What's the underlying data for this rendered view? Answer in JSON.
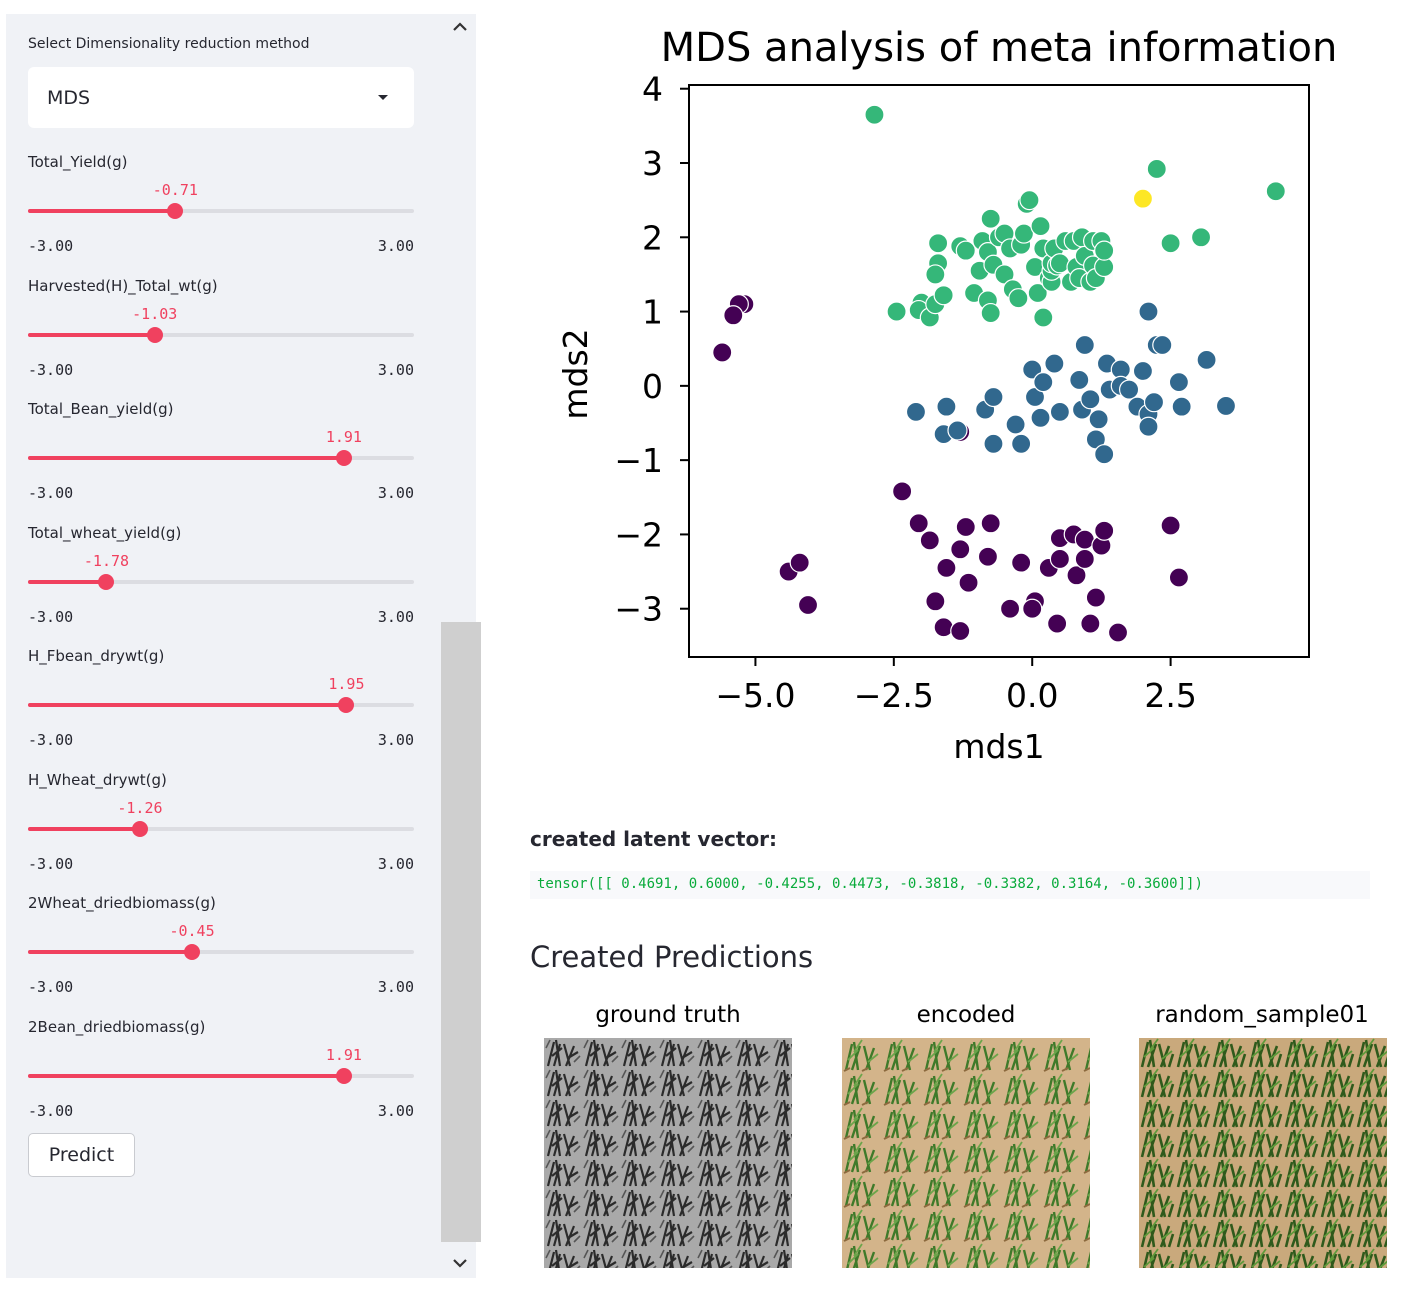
{
  "sidebar": {
    "select_label": "Select Dimensionality reduction method",
    "select_value": "MDS",
    "sliders": [
      {
        "label": "Total_Yield(g)",
        "value": "-0.71",
        "num": -0.71,
        "min": "-3.00",
        "max": "3.00"
      },
      {
        "label": "Harvested(H)_Total_wt(g)",
        "value": "-1.03",
        "num": -1.03,
        "min": "-3.00",
        "max": "3.00"
      },
      {
        "label": "Total_Bean_yield(g)",
        "value": "1.91",
        "num": 1.91,
        "min": "-3.00",
        "max": "3.00"
      },
      {
        "label": "Total_wheat_yield(g)",
        "value": "-1.78",
        "num": -1.78,
        "min": "-3.00",
        "max": "3.00"
      },
      {
        "label": "H_Fbean_drywt(g)",
        "value": "1.95",
        "num": 1.95,
        "min": "-3.00",
        "max": "3.00"
      },
      {
        "label": "H_Wheat_drywt(g)",
        "value": "-1.26",
        "num": -1.26,
        "min": "-3.00",
        "max": "3.00"
      },
      {
        "label": "2Wheat_driedbiomass(g)",
        "value": "-0.45",
        "num": -0.45,
        "min": "-3.00",
        "max": "3.00"
      },
      {
        "label": "2Bean_driedbiomass(g)",
        "value": "1.91",
        "num": 1.91,
        "min": "-3.00",
        "max": "3.00"
      }
    ],
    "predict_label": "Predict",
    "accent_color": "#f0415f"
  },
  "chart_data": {
    "type": "scatter",
    "title": "MDS analysis of meta information",
    "xlabel": "mds1",
    "ylabel": "mds2",
    "xlim": [
      -6.2,
      5
    ],
    "ylim": [
      -3.65,
      4.05
    ],
    "xticks": [
      -5.0,
      -2.5,
      0.0,
      2.5
    ],
    "xtick_labels": [
      "−5.0",
      "−2.5",
      "0.0",
      "2.5"
    ],
    "yticks": [
      4,
      3,
      2,
      1,
      0,
      -1,
      -2,
      -3
    ],
    "ytick_labels": [
      "4",
      "3",
      "2",
      "1",
      "0",
      "−1",
      "−2",
      "−3"
    ],
    "grid": false,
    "legend": "none",
    "series": [
      {
        "color": "#440154",
        "points": [
          [
            -5.2,
            1.1
          ],
          [
            -5.3,
            1.1
          ],
          [
            -5.4,
            0.95
          ],
          [
            -5.6,
            0.45
          ],
          [
            -4.05,
            -2.95
          ],
          [
            -4.4,
            -2.5
          ],
          [
            -4.2,
            -2.38
          ],
          [
            -2.35,
            -1.42
          ],
          [
            -2.05,
            -1.85
          ],
          [
            -1.85,
            -2.08
          ],
          [
            -1.55,
            -2.45
          ],
          [
            -1.3,
            -2.2
          ],
          [
            -1.2,
            -1.9
          ],
          [
            -1.15,
            -2.65
          ],
          [
            -1.75,
            -2.9
          ],
          [
            -1.6,
            -3.25
          ],
          [
            -1.3,
            -3.3
          ],
          [
            -0.8,
            -2.3
          ],
          [
            -0.75,
            -1.85
          ],
          [
            -0.4,
            -3.0
          ],
          [
            -0.2,
            -2.38
          ],
          [
            0.05,
            -2.9
          ],
          [
            0.0,
            -3.0
          ],
          [
            0.3,
            -2.45
          ],
          [
            0.5,
            -2.33
          ],
          [
            0.45,
            -3.2
          ],
          [
            0.5,
            -2.05
          ],
          [
            0.75,
            -2.0
          ],
          [
            0.8,
            -2.55
          ],
          [
            0.95,
            -2.07
          ],
          [
            0.95,
            -2.33
          ],
          [
            1.05,
            -3.2
          ],
          [
            1.15,
            -2.85
          ],
          [
            1.25,
            -2.15
          ],
          [
            1.3,
            -1.95
          ],
          [
            1.55,
            -3.32
          ],
          [
            2.5,
            -1.88
          ],
          [
            2.65,
            -2.58
          ],
          [
            -1.3,
            -0.62
          ]
        ]
      },
      {
        "color": "#31688e",
        "points": [
          [
            -2.1,
            -0.35
          ],
          [
            -1.55,
            -0.28
          ],
          [
            -1.6,
            -0.65
          ],
          [
            -1.35,
            -0.6
          ],
          [
            -0.85,
            -0.32
          ],
          [
            -0.7,
            -0.15
          ],
          [
            -0.7,
            -0.78
          ],
          [
            -0.3,
            -0.52
          ],
          [
            -0.2,
            -0.78
          ],
          [
            0.0,
            0.22
          ],
          [
            0.05,
            -0.15
          ],
          [
            0.15,
            -0.43
          ],
          [
            0.2,
            0.05
          ],
          [
            0.4,
            0.3
          ],
          [
            0.5,
            -0.35
          ],
          [
            0.85,
            0.08
          ],
          [
            0.9,
            -0.32
          ],
          [
            0.95,
            0.55
          ],
          [
            1.05,
            -0.18
          ],
          [
            1.15,
            -0.72
          ],
          [
            1.2,
            -0.45
          ],
          [
            1.3,
            -0.92
          ],
          [
            1.35,
            0.3
          ],
          [
            1.4,
            -0.05
          ],
          [
            1.6,
            0.22
          ],
          [
            1.6,
            0.0
          ],
          [
            1.75,
            -0.05
          ],
          [
            1.9,
            -0.28
          ],
          [
            2.0,
            0.2
          ],
          [
            2.1,
            -0.38
          ],
          [
            2.1,
            -0.55
          ],
          [
            2.2,
            -0.22
          ],
          [
            2.25,
            0.55
          ],
          [
            2.35,
            0.55
          ],
          [
            2.7,
            -0.28
          ],
          [
            2.65,
            0.05
          ],
          [
            2.1,
            1.0
          ],
          [
            3.15,
            0.35
          ],
          [
            3.5,
            -0.27
          ]
        ]
      },
      {
        "color": "#35b779",
        "points": [
          [
            -2.85,
            3.65
          ],
          [
            -2.45,
            1.0
          ],
          [
            -2.0,
            1.12
          ],
          [
            -2.05,
            1.02
          ],
          [
            -1.85,
            0.92
          ],
          [
            -1.75,
            1.1
          ],
          [
            -1.6,
            1.22
          ],
          [
            -1.7,
            1.92
          ],
          [
            -1.7,
            1.65
          ],
          [
            -1.75,
            1.5
          ],
          [
            -1.3,
            1.88
          ],
          [
            -1.2,
            1.82
          ],
          [
            -1.05,
            1.25
          ],
          [
            -0.95,
            1.55
          ],
          [
            -0.9,
            1.95
          ],
          [
            -0.8,
            1.8
          ],
          [
            -0.8,
            1.15
          ],
          [
            -0.75,
            2.25
          ],
          [
            -0.75,
            0.98
          ],
          [
            -0.7,
            1.63
          ],
          [
            -0.6,
            2.0
          ],
          [
            -0.5,
            1.5
          ],
          [
            -0.5,
            2.05
          ],
          [
            -0.4,
            1.85
          ],
          [
            -0.35,
            1.3
          ],
          [
            -0.25,
            1.18
          ],
          [
            -0.2,
            1.9
          ],
          [
            -0.15,
            2.05
          ],
          [
            -0.1,
            2.45
          ],
          [
            -0.05,
            2.5
          ],
          [
            0.05,
            1.6
          ],
          [
            0.1,
            1.25
          ],
          [
            0.15,
            2.15
          ],
          [
            0.2,
            1.85
          ],
          [
            0.2,
            0.92
          ],
          [
            0.3,
            1.45
          ],
          [
            0.35,
            1.4
          ],
          [
            0.35,
            1.55
          ],
          [
            0.35,
            1.65
          ],
          [
            0.4,
            1.85
          ],
          [
            0.45,
            1.62
          ],
          [
            0.5,
            1.65
          ],
          [
            0.6,
            1.95
          ],
          [
            0.7,
            1.4
          ],
          [
            0.75,
            1.95
          ],
          [
            0.8,
            1.6
          ],
          [
            0.85,
            1.45
          ],
          [
            0.9,
            2.0
          ],
          [
            0.95,
            1.75
          ],
          [
            1.05,
            1.4
          ],
          [
            1.1,
            1.95
          ],
          [
            1.1,
            1.62
          ],
          [
            1.15,
            1.45
          ],
          [
            1.25,
            1.95
          ],
          [
            1.3,
            1.6
          ],
          [
            1.3,
            1.82
          ],
          [
            2.25,
            2.92
          ],
          [
            2.5,
            1.92
          ],
          [
            3.05,
            2.0
          ],
          [
            4.4,
            2.62
          ]
        ]
      },
      {
        "color": "#fde725",
        "points": [
          [
            2.0,
            2.52
          ]
        ]
      }
    ]
  },
  "latent": {
    "heading": "created latent vector:",
    "tensor": "tensor([[ 0.4691, 0.6000, -0.4255, 0.4473, -0.3818, -0.3382, 0.3164, -0.3600]])"
  },
  "predictions": {
    "heading": "Created Predictions",
    "captions": [
      "ground truth",
      "encoded",
      "random_sample01"
    ]
  }
}
